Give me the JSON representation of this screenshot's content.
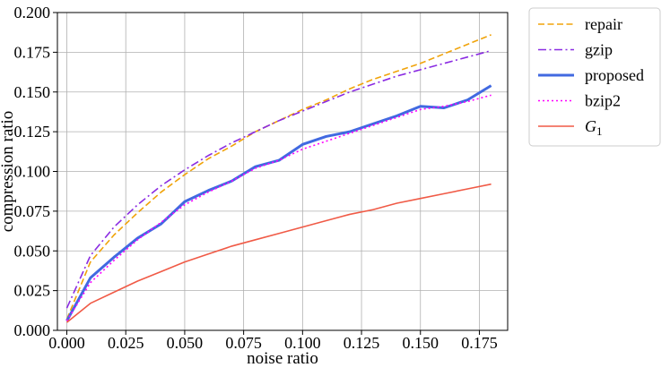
{
  "chart_data": {
    "type": "line",
    "title": "",
    "xlabel": "noise ratio",
    "ylabel": "compression ratio",
    "xlim": [
      -0.004,
      0.187
    ],
    "ylim": [
      0.0,
      0.2
    ],
    "x_ticks": [
      "0.000",
      "0.025",
      "0.050",
      "0.075",
      "0.100",
      "0.125",
      "0.150",
      "0.175"
    ],
    "y_ticks": [
      "0.000",
      "0.025",
      "0.050",
      "0.075",
      "0.100",
      "0.125",
      "0.150",
      "0.175",
      "0.200"
    ],
    "grid": true,
    "legend_position": "outside-top-right",
    "x": [
      0.0,
      0.01,
      0.02,
      0.03,
      0.04,
      0.05,
      0.06,
      0.07,
      0.08,
      0.09,
      0.1,
      0.11,
      0.12,
      0.13,
      0.14,
      0.15,
      0.16,
      0.17,
      0.18
    ],
    "series": [
      {
        "name": "repair",
        "color": "#f0a30a",
        "dash": "dashed",
        "values": [
          0.007,
          0.043,
          0.06,
          0.074,
          0.087,
          0.098,
          0.108,
          0.116,
          0.125,
          0.132,
          0.139,
          0.145,
          0.152,
          0.158,
          0.163,
          0.168,
          0.174,
          0.18,
          0.186
        ]
      },
      {
        "name": "gzip",
        "color": "#8a2be2",
        "dash": "dashdot",
        "values": [
          0.014,
          0.047,
          0.065,
          0.079,
          0.091,
          0.101,
          0.11,
          0.118,
          0.125,
          0.132,
          0.138,
          0.144,
          0.15,
          0.155,
          0.16,
          0.164,
          0.168,
          0.172,
          0.176
        ]
      },
      {
        "name": "proposed",
        "color": "#4169e1",
        "dash": "solid",
        "values": [
          0.006,
          0.033,
          0.046,
          0.058,
          0.067,
          0.081,
          0.088,
          0.094,
          0.103,
          0.107,
          0.117,
          0.122,
          0.125,
          0.13,
          0.135,
          0.141,
          0.14,
          0.145,
          0.154
        ]
      },
      {
        "name": "bzip2",
        "color": "#ff00ff",
        "dash": "dotted",
        "values": [
          0.006,
          0.03,
          0.044,
          0.057,
          0.068,
          0.079,
          0.087,
          0.094,
          0.102,
          0.107,
          0.114,
          0.119,
          0.124,
          0.129,
          0.134,
          0.139,
          0.141,
          0.144,
          0.148
        ]
      },
      {
        "name": "G1",
        "color": "#f05a46",
        "dash": "solid",
        "values": [
          0.005,
          0.017,
          0.024,
          0.031,
          0.037,
          0.043,
          0.048,
          0.053,
          0.057,
          0.061,
          0.065,
          0.069,
          0.073,
          0.076,
          0.08,
          0.083,
          0.086,
          0.089,
          0.092
        ]
      }
    ]
  }
}
